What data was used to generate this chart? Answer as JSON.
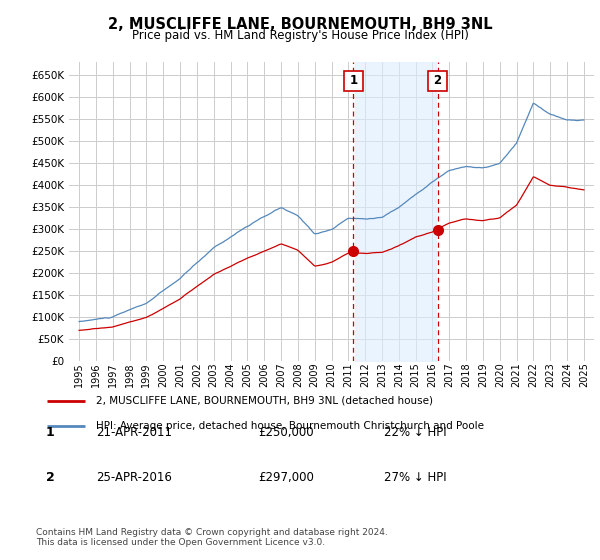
{
  "title": "2, MUSCLIFFE LANE, BOURNEMOUTH, BH9 3NL",
  "subtitle": "Price paid vs. HM Land Registry's House Price Index (HPI)",
  "ylim": [
    0,
    680000
  ],
  "yticks": [
    0,
    50000,
    100000,
    150000,
    200000,
    250000,
    300000,
    350000,
    400000,
    450000,
    500000,
    550000,
    600000,
    650000
  ],
  "ytick_labels": [
    "£0",
    "£50K",
    "£100K",
    "£150K",
    "£200K",
    "£250K",
    "£300K",
    "£350K",
    "£400K",
    "£450K",
    "£500K",
    "£550K",
    "£600K",
    "£650K"
  ],
  "hpi_color": "#5588bb",
  "price_color": "#cc0000",
  "sale1_year": 2011.3,
  "sale1_price": 250000,
  "sale2_year": 2016.3,
  "sale2_price": 297000,
  "vline_color": "#cc0000",
  "background_color": "#ffffff",
  "grid_color": "#cccccc",
  "legend_label_red": "2, MUSCLIFFE LANE, BOURNEMOUTH, BH9 3NL (detached house)",
  "legend_label_blue": "HPI: Average price, detached house, Bournemouth Christchurch and Poole",
  "table_entries": [
    {
      "num": "1",
      "date": "21-APR-2011",
      "price": "£250,000",
      "note": "22% ↓ HPI"
    },
    {
      "num": "2",
      "date": "25-APR-2016",
      "price": "£297,000",
      "note": "27% ↓ HPI"
    }
  ],
  "footer": "Contains HM Land Registry data © Crown copyright and database right 2024.\nThis data is licensed under the Open Government Licence v3.0.",
  "hpi_shade_color": "#ddeeff"
}
